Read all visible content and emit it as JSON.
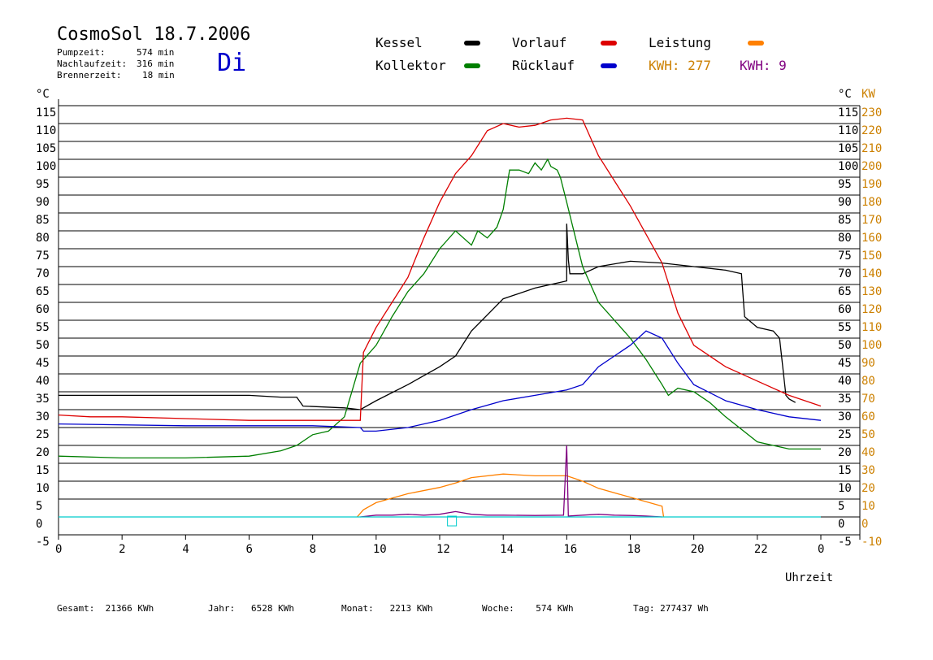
{
  "header": {
    "title": "CosmoSol 18.7.2006",
    "pumpzeit_label": "Pumpzeit:",
    "pumpzeit_value": "574 min",
    "nachlaufzeit_label": "Nachlaufzeit:",
    "nachlaufzeit_value": "316 min",
    "brennerzeit_label": "Brennerzeit:",
    "brennerzeit_value": "18 min",
    "weekday": "Di"
  },
  "legend": {
    "kessel": "Kessel",
    "kollektor": "Kollektor",
    "vorlauf": "Vorlauf",
    "ruecklauf": "Rücklauf",
    "leistung": "Leistung",
    "kwh_orange": "KWH: 277",
    "kwh_purple": "KWH: 9"
  },
  "colors": {
    "kessel": "#000000",
    "kollektor": "#007f00",
    "vorlauf": "#dd0000",
    "ruecklauf": "#0000cc",
    "leistung": "#ff8000",
    "leistung_axis": "#cc8000",
    "purple": "#800080",
    "cyan": "#00cccc"
  },
  "footer": {
    "gesamt": "Gesamt:  21366 KWh",
    "jahr": "Jahr:   6528 KWh",
    "monat": "Monat:   2213 KWh",
    "woche": "Woche:    574 KWh",
    "tag": "Tag: 277437 Wh"
  },
  "chart_data": {
    "type": "line",
    "xlabel": "Uhrzeit",
    "ylabel_left": "°C",
    "ylabel_right_c": "°C",
    "ylabel_right_kw": "KW",
    "xlim": [
      0,
      24
    ],
    "ylim": [
      -5,
      115
    ],
    "x_ticks": [
      "0",
      "2",
      "4",
      "6",
      "8",
      "10",
      "12",
      "14",
      "16",
      "18",
      "20",
      "22",
      "0"
    ],
    "y_ticks": [
      115,
      110,
      105,
      100,
      95,
      90,
      85,
      80,
      75,
      70,
      65,
      60,
      55,
      50,
      45,
      40,
      35,
      30,
      25,
      20,
      15,
      10,
      5,
      0,
      -5
    ],
    "kw_ticks": [
      230,
      220,
      210,
      200,
      190,
      180,
      170,
      160,
      150,
      140,
      130,
      120,
      110,
      100,
      90,
      80,
      70,
      60,
      50,
      40,
      30,
      20,
      10,
      0,
      -10
    ],
    "series": [
      {
        "name": "Kessel",
        "color_key": "kessel",
        "x": [
          0,
          6,
          7,
          7.5,
          7.7,
          9,
          9.5,
          10,
          11,
          12,
          12.5,
          13,
          14,
          15,
          16,
          16,
          16.05,
          16.1,
          16.5,
          17,
          18,
          19,
          20,
          21,
          21.5,
          21.6,
          22,
          22.5,
          22.7,
          22.9,
          23,
          23.2
        ],
        "y": [
          34,
          34,
          33.5,
          33.5,
          31,
          30.5,
          30,
          32.5,
          37,
          42,
          45,
          52,
          61,
          64,
          66,
          82,
          72,
          68,
          68,
          70,
          71.5,
          71,
          70,
          69,
          68,
          56,
          53,
          52,
          50,
          34,
          33,
          32
        ]
      },
      {
        "name": "Kollektor",
        "color_key": "kollektor",
        "x": [
          0,
          2,
          4,
          6,
          7,
          7.5,
          8,
          8.5,
          9,
          9.5,
          9.6,
          10,
          10.5,
          11,
          11.5,
          12,
          12.5,
          13,
          13.2,
          13.5,
          13.8,
          14,
          14.2,
          14.5,
          14.8,
          15,
          15.2,
          15.4,
          15.5,
          15.7,
          15.8,
          16,
          16.5,
          17,
          17.5,
          18,
          18.5,
          19,
          19.2,
          19.5,
          20,
          20.5,
          21,
          22,
          23,
          24
        ],
        "y": [
          17,
          16.5,
          16.5,
          17,
          18.5,
          20,
          23,
          24,
          28,
          43,
          44,
          48,
          56,
          63,
          68,
          75,
          80,
          76,
          80,
          78,
          81,
          86,
          97,
          97,
          96,
          99,
          97,
          100,
          98,
          97,
          95,
          88,
          70,
          60,
          55,
          50,
          44,
          37,
          34,
          36,
          35,
          32,
          28,
          21,
          19,
          19
        ]
      },
      {
        "name": "Vorlauf",
        "color_key": "vorlauf",
        "x": [
          0,
          1,
          2,
          4,
          6,
          8,
          9,
          9.5,
          9.6,
          10,
          10.5,
          11,
          11.5,
          12,
          12.5,
          13,
          13.5,
          14,
          14.5,
          15,
          15.5,
          16,
          16.5,
          17,
          18,
          19,
          19.5,
          20,
          21,
          22,
          23,
          24
        ],
        "y": [
          28.5,
          28,
          28,
          27.5,
          27,
          27,
          27,
          27,
          46,
          53,
          60,
          67,
          78,
          88,
          96,
          101,
          108,
          110,
          109,
          109.5,
          111,
          111.5,
          111,
          101,
          87,
          71,
          57,
          48,
          42,
          38,
          34,
          31
        ]
      },
      {
        "name": "Rücklauf",
        "color_key": "ruecklauf",
        "x": [
          0,
          4,
          6,
          8,
          9.5,
          9.6,
          10,
          11,
          12,
          13,
          14,
          15,
          16,
          16.5,
          17,
          18,
          18.5,
          19,
          19.5,
          20,
          21,
          22,
          23,
          24
        ],
        "y": [
          26,
          25.5,
          25.5,
          25.5,
          25,
          24,
          24,
          25,
          27,
          30,
          32.5,
          34,
          35.5,
          37,
          42,
          48,
          52,
          50,
          43,
          37,
          32.5,
          30,
          28,
          27
        ]
      },
      {
        "name": "Leistung",
        "color_key": "leistung",
        "x": [
          9.4,
          9.6,
          10,
          11,
          12,
          12.5,
          13,
          14,
          15,
          16,
          16.5,
          17,
          18,
          19,
          19.05
        ],
        "y": [
          0,
          4,
          8,
          13,
          16.5,
          19,
          22,
          24,
          23,
          23,
          20,
          16,
          11,
          6,
          0
        ],
        "kw_scale": true
      },
      {
        "name": "KWH purple",
        "color_key": "purple",
        "x": [
          9.5,
          10,
          10.5,
          11,
          11.5,
          12,
          12.5,
          13,
          13.5,
          14,
          15,
          15.9,
          16,
          16.05,
          16.5,
          17,
          17.5,
          18,
          18.5,
          19
        ],
        "y": [
          0,
          1,
          1,
          1.5,
          1,
          1.5,
          3,
          1.5,
          1,
          1,
          0.8,
          1,
          40,
          0.5,
          1,
          1.5,
          1,
          0.8,
          0.5,
          0
        ],
        "kw_scale": true
      },
      {
        "name": "Baseline",
        "color_key": "cyan",
        "x": [
          0,
          24
        ],
        "y": [
          0,
          0
        ],
        "kw_scale": true
      }
    ]
  }
}
